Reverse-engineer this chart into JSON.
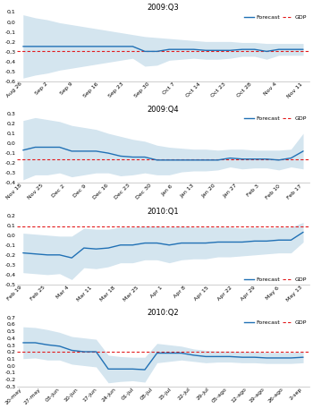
{
  "panels": [
    {
      "title": "2009:Q3",
      "gdp": -0.3,
      "ylim": [
        -0.6,
        0.1
      ],
      "yticks": [
        0.1,
        0.0,
        -0.1,
        -0.2,
        -0.3,
        -0.4,
        -0.5,
        -0.6
      ],
      "xtick_labels": [
        "Aug 26",
        "Sep 2",
        "Sep 9",
        "Sep 16",
        "Sep 23",
        "Sep 30",
        "Oct 7",
        "Oct 14",
        "Oct 23",
        "Oct 28",
        "Nov 4",
        "Nov 11"
      ],
      "forecast": [
        -0.25,
        -0.25,
        -0.25,
        -0.25,
        -0.25,
        -0.25,
        -0.25,
        -0.25,
        -0.25,
        -0.25,
        -0.3,
        -0.3,
        -0.28,
        -0.28,
        -0.28,
        -0.29,
        -0.29,
        -0.29,
        -0.28,
        -0.28,
        -0.3,
        -0.28,
        -0.28,
        -0.28
      ],
      "upper": [
        0.07,
        0.04,
        0.02,
        -0.01,
        -0.03,
        -0.05,
        -0.07,
        -0.09,
        -0.11,
        -0.13,
        -0.15,
        -0.16,
        -0.17,
        -0.18,
        -0.19,
        -0.2,
        -0.2,
        -0.2,
        -0.21,
        -0.21,
        -0.22,
        -0.22,
        -0.22,
        -0.22
      ],
      "lower": [
        -0.57,
        -0.54,
        -0.52,
        -0.49,
        -0.47,
        -0.45,
        -0.43,
        -0.41,
        -0.39,
        -0.37,
        -0.45,
        -0.44,
        -0.39,
        -0.38,
        -0.37,
        -0.38,
        -0.38,
        -0.37,
        -0.35,
        -0.35,
        -0.38,
        -0.34,
        -0.34,
        -0.34
      ],
      "legend_loc": "upper right",
      "n_points": 24
    },
    {
      "title": "2009:Q4",
      "gdp": -0.16,
      "ylim": [
        -0.4,
        0.3
      ],
      "yticks": [
        0.3,
        0.2,
        0.1,
        0.0,
        -0.1,
        -0.2,
        -0.3,
        -0.4
      ],
      "xtick_labels": [
        "Nov 18",
        "Nov 25",
        "Dec 2",
        "Dec 9",
        "Dec 16",
        "Dec 23",
        "Dec 30",
        "Jan 6",
        "Jan 13",
        "Jan 20",
        "Jan 27",
        "Feb 3",
        "Feb 10",
        "Feb 17"
      ],
      "forecast": [
        -0.07,
        -0.04,
        -0.04,
        -0.04,
        -0.08,
        -0.08,
        -0.08,
        -0.1,
        -0.13,
        -0.14,
        -0.14,
        -0.17,
        -0.17,
        -0.17,
        -0.17,
        -0.17,
        -0.17,
        -0.15,
        -0.16,
        -0.16,
        -0.16,
        -0.17,
        -0.15,
        -0.08
      ],
      "upper": [
        0.23,
        0.26,
        0.24,
        0.22,
        0.18,
        0.16,
        0.14,
        0.1,
        0.07,
        0.04,
        0.02,
        -0.02,
        -0.04,
        -0.05,
        -0.06,
        -0.06,
        -0.07,
        -0.06,
        -0.06,
        -0.07,
        -0.07,
        -0.07,
        -0.06,
        0.1
      ],
      "lower": [
        -0.37,
        -0.32,
        -0.32,
        -0.3,
        -0.34,
        -0.32,
        -0.3,
        -0.3,
        -0.33,
        -0.32,
        -0.3,
        -0.32,
        -0.32,
        -0.29,
        -0.28,
        -0.28,
        -0.27,
        -0.24,
        -0.26,
        -0.25,
        -0.25,
        -0.27,
        -0.24,
        -0.26
      ],
      "legend_loc": "upper right",
      "n_points": 24
    },
    {
      "title": "2010:Q1",
      "gdp": 0.09,
      "ylim": [
        -0.5,
        0.2
      ],
      "yticks": [
        0.2,
        0.1,
        0.0,
        -0.1,
        -0.2,
        -0.3,
        -0.4,
        -0.5
      ],
      "xtick_labels": [
        "Feb 19",
        "Feb 25",
        "Mar 4",
        "Mar 11",
        "Mar 18",
        "Mar 25",
        "Apr 1",
        "Apr 8",
        "Apr 15",
        "Apr 22",
        "Apr 29",
        "May 6",
        "May 13"
      ],
      "forecast": [
        -0.18,
        -0.19,
        -0.2,
        -0.2,
        -0.23,
        -0.13,
        -0.14,
        -0.13,
        -0.1,
        -0.1,
        -0.08,
        -0.08,
        -0.1,
        -0.08,
        -0.08,
        -0.08,
        -0.07,
        -0.07,
        -0.07,
        -0.06,
        -0.06,
        -0.05,
        -0.05,
        0.03
      ],
      "upper": [
        0.02,
        0.01,
        0.0,
        -0.01,
        -0.01,
        0.07,
        0.06,
        0.06,
        0.08,
        0.08,
        0.09,
        0.09,
        0.08,
        0.09,
        0.08,
        0.08,
        0.08,
        0.08,
        0.07,
        0.08,
        0.07,
        0.08,
        0.08,
        0.13
      ],
      "lower": [
        -0.38,
        -0.39,
        -0.4,
        -0.39,
        -0.45,
        -0.33,
        -0.34,
        -0.32,
        -0.28,
        -0.28,
        -0.25,
        -0.25,
        -0.28,
        -0.25,
        -0.24,
        -0.24,
        -0.22,
        -0.22,
        -0.21,
        -0.2,
        -0.19,
        -0.18,
        -0.18,
        -0.07
      ],
      "legend_loc": "lower right",
      "n_points": 24
    },
    {
      "title": "2010:Q2",
      "gdp": 0.2,
      "ylim": [
        -0.3,
        0.7
      ],
      "yticks": [
        0.7,
        0.6,
        0.5,
        0.4,
        0.3,
        0.2,
        0.1,
        0.0,
        -0.1,
        -0.2,
        -0.3
      ],
      "xtick_labels": [
        "20-may",
        "27-may",
        "03-jun",
        "10-jun",
        "17-jun",
        "24-jun",
        "01-jul",
        "08-jul",
        "15-jul",
        "22-jul",
        "29-jul",
        "05-ago",
        "12-ago",
        "19-ago",
        "26-ago",
        "2-sep"
      ],
      "forecast": [
        0.33,
        0.33,
        0.3,
        0.28,
        0.22,
        0.2,
        0.2,
        -0.05,
        -0.05,
        -0.05,
        -0.06,
        0.18,
        0.18,
        0.18,
        0.15,
        0.13,
        0.13,
        0.13,
        0.12,
        0.12,
        0.11,
        0.11,
        0.11,
        0.12
      ],
      "upper": [
        0.56,
        0.55,
        0.52,
        0.48,
        0.42,
        0.4,
        0.38,
        0.15,
        0.13,
        0.12,
        0.12,
        0.32,
        0.3,
        0.28,
        0.24,
        0.22,
        0.21,
        0.21,
        0.2,
        0.2,
        0.19,
        0.19,
        0.19,
        0.2
      ],
      "lower": [
        0.1,
        0.11,
        0.08,
        0.08,
        0.02,
        0.0,
        -0.02,
        -0.25,
        -0.23,
        -0.22,
        -0.24,
        0.04,
        0.06,
        0.08,
        0.06,
        0.04,
        0.05,
        0.05,
        0.04,
        0.04,
        0.03,
        0.03,
        0.03,
        0.04
      ],
      "legend_loc": "upper right",
      "n_points": 24
    }
  ],
  "forecast_color": "#2171b5",
  "band_color": "#bdd7e7",
  "gdp_color": "#e31a1c",
  "line_width": 1.0,
  "band_alpha": 0.65,
  "background_color": "#ffffff",
  "tick_fontsize": 4.5,
  "title_fontsize": 6.0,
  "label_fontsize": 4.5
}
